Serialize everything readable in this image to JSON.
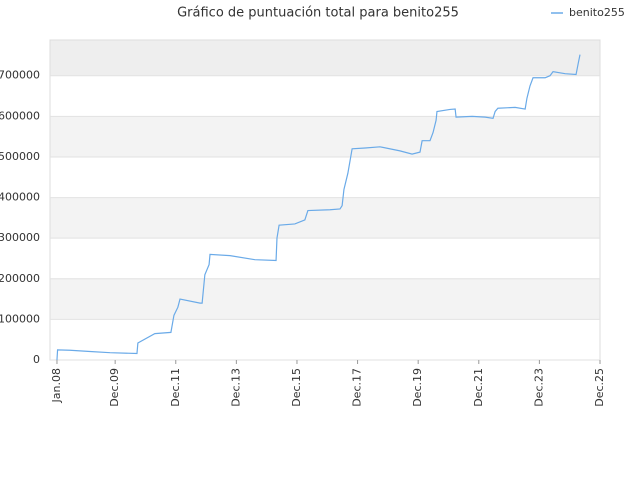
{
  "chart_data": {
    "type": "line",
    "title": "Gráfico de puntuación total para benito255",
    "x": [
      2008.0,
      2008.02,
      2008.43,
      2009.09,
      2009.75,
      2010.64,
      2010.67,
      2011.23,
      2011.76,
      2011.86,
      2011.99,
      2012.06,
      2012.72,
      2012.79,
      2012.88,
      2013.02,
      2013.05,
      2013.71,
      2014.53,
      2015.23,
      2015.26,
      2015.33,
      2015.85,
      2016.18,
      2016.28,
      2017.01,
      2017.34,
      2017.41,
      2017.47,
      2017.6,
      2017.74,
      2018.17,
      2018.66,
      2019.32,
      2019.72,
      2019.98,
      2020.05,
      2020.31,
      2020.41,
      2020.51,
      2020.54,
      2020.97,
      2021.14,
      2021.17,
      2021.7,
      2022.13,
      2022.39,
      2022.46,
      2022.55,
      2023.12,
      2023.45,
      2023.51,
      2023.61,
      2023.71,
      2024.11,
      2024.27,
      2024.37,
      2024.77,
      2025.13,
      2025.2,
      2025.26
    ],
    "series": [
      {
        "name": "benito255",
        "color": "#6aaae8",
        "values": [
          0,
          25000,
          24000,
          21000,
          18000,
          16000,
          42000,
          65000,
          68000,
          110000,
          130000,
          150000,
          140000,
          140000,
          210000,
          235000,
          260000,
          257000,
          247000,
          245000,
          300000,
          332000,
          335000,
          345000,
          368000,
          370000,
          372000,
          380000,
          420000,
          460000,
          520000,
          522000,
          525000,
          515000,
          507000,
          512000,
          540000,
          540000,
          560000,
          590000,
          612000,
          617000,
          618000,
          598000,
          600000,
          598000,
          595000,
          612000,
          620000,
          622000,
          618000,
          645000,
          675000,
          695000,
          695000,
          700000,
          710000,
          705000,
          703000,
          730000,
          752000
        ]
      }
    ],
    "xlim": [
      2007.77,
      2025.92
    ],
    "xticks": [
      {
        "value": 2008.0,
        "label": "Jan.08"
      },
      {
        "value": 2009.92,
        "label": "Dec.09"
      },
      {
        "value": 2011.92,
        "label": "Dec.11"
      },
      {
        "value": 2013.92,
        "label": "Dec.13"
      },
      {
        "value": 2015.92,
        "label": "Dec.15"
      },
      {
        "value": 2017.92,
        "label": "Dec.17"
      },
      {
        "value": 2019.92,
        "label": "Dec.19"
      },
      {
        "value": 2021.92,
        "label": "Dec.21"
      },
      {
        "value": 2023.92,
        "label": "Dec.23"
      },
      {
        "value": 2025.92,
        "label": "Dec.25"
      }
    ],
    "ylim": [
      0,
      788000
    ],
    "yticks": [
      0,
      100000,
      200000,
      300000,
      400000,
      500000,
      600000,
      700000
    ],
    "grid": true,
    "legend": "top-right"
  }
}
